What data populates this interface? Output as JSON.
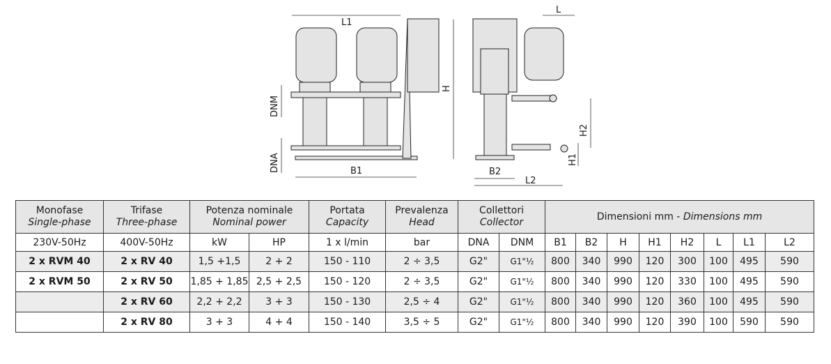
{
  "drawing": {
    "labels": {
      "L1": "L1",
      "H": "H",
      "DNM": "DNM",
      "DNA": "DNA",
      "B1": "B1",
      "L": "L",
      "H2": "H2",
      "H1": "H1",
      "B2": "B2",
      "L2": "L2"
    }
  },
  "table": {
    "headers": {
      "monofase": "Monofase",
      "monofase_en": "Single-phase",
      "trifase": "Trifase",
      "trifase_en": "Three-phase",
      "potenza": "Potenza nominale",
      "potenza_en": "Nominal power",
      "portata": "Portata",
      "portata_en": "Capacity",
      "prevalenza": "Prevalenza",
      "prevalenza_en": "Head",
      "collettori": "Collettori",
      "collettori_en": "Collector",
      "dimensioni": "Dimensioni mm - ",
      "dimensioni_en": "Dimensions mm"
    },
    "units": [
      "230V-50Hz",
      "400V-50Hz",
      "kW",
      "HP",
      "1 x l/min",
      "bar",
      "DNA",
      "DNM",
      "B1",
      "B2",
      "H",
      "H1",
      "H2",
      "L",
      "L1",
      "L2"
    ],
    "rows": [
      [
        "2 x RVM 40",
        "2 x RV 40",
        "1,5 +1,5",
        "2 + 2",
        "150 - 110",
        "2 ÷ 3,5",
        "G2\"",
        "G1\"½",
        "800",
        "340",
        "990",
        "120",
        "300",
        "100",
        "495",
        "590"
      ],
      [
        "2 x RVM 50",
        "2 x RV 50",
        "1,85 + 1,85",
        "2,5 + 2,5",
        "150 - 120",
        "2 ÷ 3,5",
        "G2\"",
        "G1\"½",
        "800",
        "340",
        "990",
        "120",
        "330",
        "100",
        "495",
        "590"
      ],
      [
        "",
        "2 x RV 60",
        "2,2 + 2,2",
        "3 + 3",
        "150 - 130",
        "2,5 ÷ 4",
        "G2\"",
        "G1\"½",
        "800",
        "340",
        "990",
        "120",
        "360",
        "100",
        "495",
        "590"
      ],
      [
        "",
        "2 x RV 80",
        "3 + 3",
        "4 + 4",
        "150 - 140",
        "3,5 ÷ 5",
        "G2\"",
        "G1\"½",
        "800",
        "340",
        "990",
        "120",
        "390",
        "100",
        "590",
        "590"
      ]
    ]
  }
}
